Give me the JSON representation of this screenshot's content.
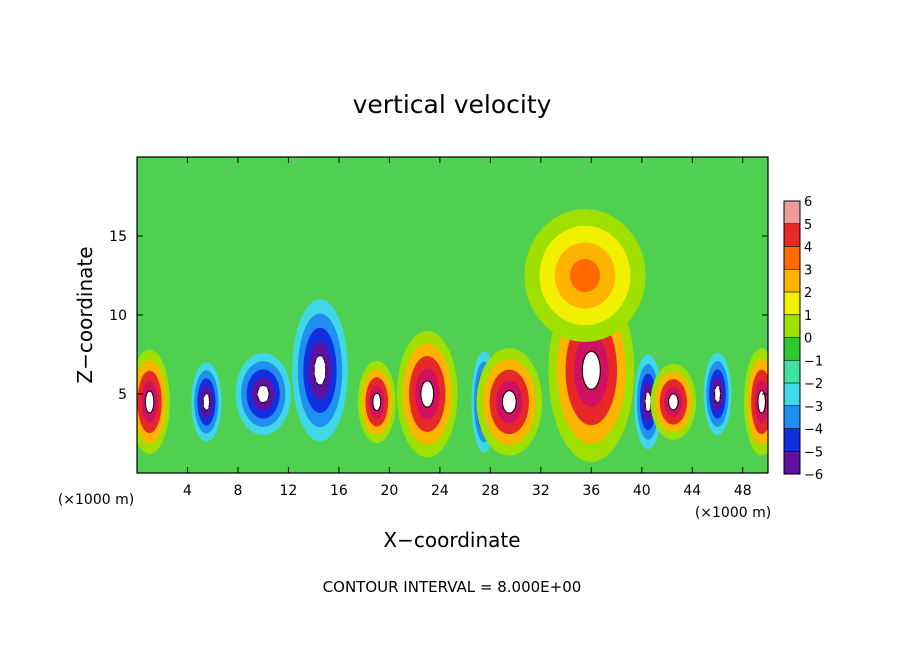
{
  "chart_data": {
    "type": "heatmap",
    "title": "vertical velocity",
    "xlabel": "X−coordinate",
    "ylabel": "Z−coordinate",
    "x_unit": "(×1000 m)",
    "y_unit": "(×1000 m)",
    "xlim": [
      0,
      50
    ],
    "ylim": [
      0,
      20
    ],
    "x_ticks": [
      4,
      8,
      12,
      16,
      20,
      24,
      28,
      32,
      36,
      40,
      44,
      48
    ],
    "y_ticks": [
      5,
      10,
      15
    ],
    "footer": "CONTOUR INTERVAL = 8.000E+00",
    "colorbar": {
      "labels": [
        "6",
        "5",
        "4",
        "3",
        "2",
        "1",
        "0",
        "−1",
        "−2",
        "−3",
        "−4",
        "−5",
        "−6"
      ],
      "colors": [
        "#f09a9a",
        "#e82828",
        "#ff6a00",
        "#ffb400",
        "#f0f000",
        "#a0e000",
        "#30c830",
        "#40e0a0",
        "#40d8e8",
        "#2090f0",
        "#1030e0",
        "#101080",
        "#6010a0"
      ]
    },
    "background_field": "#50d050",
    "features": [
      {
        "kind": "updraft",
        "x": 1.0,
        "z": 4.5,
        "rx": 1.6,
        "rz": 3.3
      },
      {
        "kind": "downdraft",
        "x": 5.5,
        "z": 4.5,
        "rx": 1.2,
        "rz": 2.5
      },
      {
        "kind": "downdraft",
        "x": 10.0,
        "z": 5.0,
        "rx": 2.2,
        "rz": 2.6
      },
      {
        "kind": "downdraft",
        "x": 14.5,
        "z": 6.5,
        "rx": 2.2,
        "rz": 4.5
      },
      {
        "kind": "updraft",
        "x": 19.0,
        "z": 4.5,
        "rx": 1.5,
        "rz": 2.6
      },
      {
        "kind": "updraft",
        "x": 23.0,
        "z": 5.0,
        "rx": 2.4,
        "rz": 4.0
      },
      {
        "kind": "downdraft",
        "x": 27.5,
        "z": 4.5,
        "rx": 1.0,
        "rz": 3.2
      },
      {
        "kind": "updraft",
        "x": 29.5,
        "z": 4.5,
        "rx": 2.6,
        "rz": 3.4
      },
      {
        "kind": "updraft",
        "x": 36.0,
        "z": 6.5,
        "rx": 3.4,
        "rz": 5.8
      },
      {
        "kind": "updraft_aloft",
        "x": 35.5,
        "z": 12.5,
        "rx": 4.8,
        "rz": 4.2
      },
      {
        "kind": "downdraft",
        "x": 40.5,
        "z": 4.5,
        "rx": 1.1,
        "rz": 3.0
      },
      {
        "kind": "updraft",
        "x": 42.5,
        "z": 4.5,
        "rx": 1.8,
        "rz": 2.4
      },
      {
        "kind": "downdraft",
        "x": 46.0,
        "z": 5.0,
        "rx": 1.1,
        "rz": 2.6
      },
      {
        "kind": "updraft",
        "x": 49.5,
        "z": 4.5,
        "rx": 1.4,
        "rz": 3.4
      }
    ]
  }
}
